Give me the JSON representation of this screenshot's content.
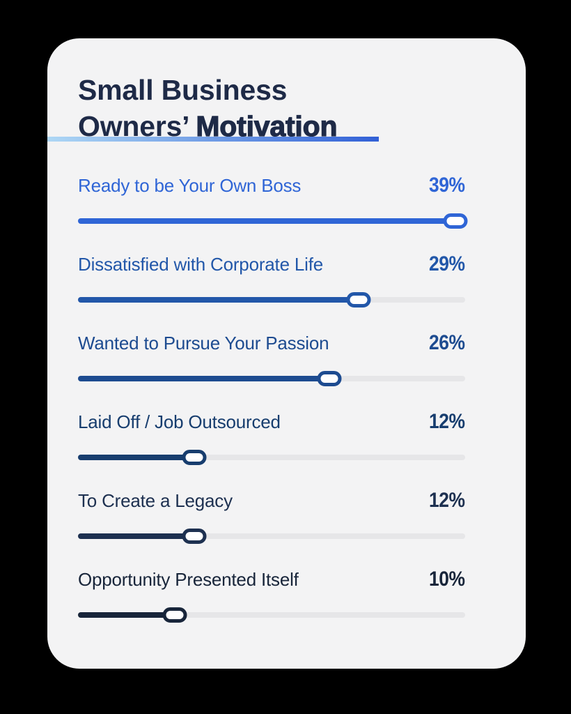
{
  "page": {
    "background": "#000000",
    "card_background": "#f3f3f4"
  },
  "header": {
    "title_line1": "Small Business",
    "title_line2_regular": "Owners’",
    "title_line2_bold": "Motivation",
    "title_color": "#1e2a47",
    "divider_gradient_start": "#aed7f5",
    "divider_gradient_end": "#3160d6"
  },
  "sliders": {
    "track_color": "#e6e6e8",
    "handle_fill": "#ffffff",
    "scale_max": 40,
    "rows": [
      {
        "label": "Ready to be Your Own Boss",
        "percent_label": "39%",
        "value": 39,
        "color": "#2f65d6"
      },
      {
        "label": "Dissatisfied with Corporate Life",
        "percent_label": "29%",
        "value": 29,
        "color": "#2257a9"
      },
      {
        "label": "Wanted to Pursue Your Passion",
        "percent_label": "26%",
        "value": 26,
        "color": "#1d4b90"
      },
      {
        "label": "Laid Off / Job Outsourced",
        "percent_label": "12%",
        "value": 12,
        "color": "#173d6e"
      },
      {
        "label": "To Create a Legacy",
        "percent_label": "12%",
        "value": 12,
        "color": "#1d3050"
      },
      {
        "label": "Opportunity Presented Itself",
        "percent_label": "10%",
        "value": 10,
        "color": "#18253a"
      }
    ]
  },
  "chart_data": {
    "type": "bar",
    "title": "Small Business Owners’ Motivation",
    "categories": [
      "Ready to be Your Own Boss",
      "Dissatisfied with Corporate Life",
      "Wanted to Pursue Your Passion",
      "Laid Off / Job Outsourced",
      "To Create a Legacy",
      "Opportunity Presented Itself"
    ],
    "values": [
      39,
      29,
      26,
      12,
      12,
      10
    ],
    "value_suffix": "%",
    "xlabel": "",
    "ylabel": "",
    "xlim": [
      0,
      40
    ],
    "orientation": "horizontal",
    "grid": false,
    "legend": false,
    "style": "slider-bars, one per row, darkening blue top to bottom"
  }
}
